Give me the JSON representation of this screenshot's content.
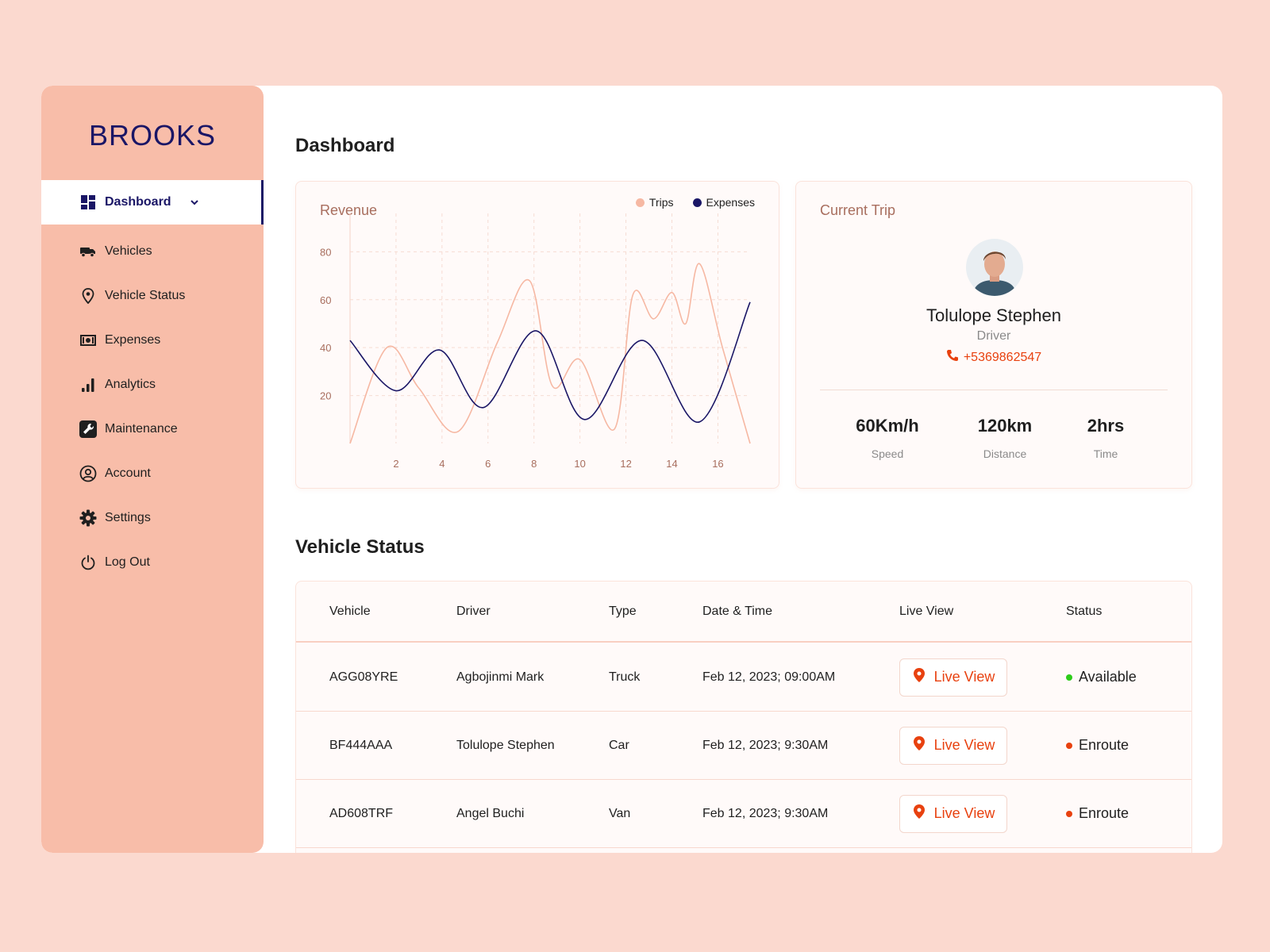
{
  "brand": {
    "name": "BROOKS"
  },
  "colors": {
    "accent": "#e8410f",
    "brand": "#1a1666",
    "sidebar": "#f8bda9",
    "trips": "#f6b8a3",
    "expenses": "#1a1666",
    "available": "#2ecc1a",
    "enroute": "#e8410f"
  },
  "sidebar": {
    "items": [
      {
        "label": "Dashboard",
        "icon": "dashboard-grid-icon",
        "active": true
      },
      {
        "label": "Vehicles",
        "icon": "truck-icon"
      },
      {
        "label": "Vehicle Status",
        "icon": "location-pin-icon"
      },
      {
        "label": "Expenses",
        "icon": "banknote-icon"
      },
      {
        "label": "Analytics",
        "icon": "bar-chart-icon"
      },
      {
        "label": "Maintenance",
        "icon": "wrench-icon"
      },
      {
        "label": "Account",
        "icon": "user-circle-icon"
      },
      {
        "label": "Settings",
        "icon": "gear-icon"
      },
      {
        "label": "Log Out",
        "icon": "power-icon"
      }
    ]
  },
  "header": {
    "title": "Dashboard"
  },
  "revenue": {
    "title": "Revenue",
    "legend": [
      "Trips",
      "Expenses"
    ]
  },
  "chart_data": {
    "type": "line",
    "title": "Revenue",
    "xlabel": "",
    "ylabel": "",
    "xlim": [
      0,
      17.4
    ],
    "ylim": [
      0,
      96
    ],
    "xticks": [
      2,
      4,
      6,
      8,
      10,
      12,
      14,
      16
    ],
    "yticks": [
      20,
      40,
      60,
      80
    ],
    "grid": true,
    "legend_position": "top-right",
    "series": [
      {
        "name": "Trips",
        "color": "#f6b8a3",
        "x": [
          0,
          1.6,
          3,
          4.7,
          6.4,
          7.8,
          8.8,
          10,
          11.5,
          12.3,
          13.2,
          14,
          14.6,
          15.2,
          16.2,
          17.4
        ],
        "y": [
          0,
          40,
          23,
          5,
          42,
          68,
          24,
          35,
          6,
          62,
          52,
          63,
          50,
          75,
          40,
          0
        ]
      },
      {
        "name": "Expenses",
        "color": "#1a1666",
        "x": [
          0,
          2,
          3.9,
          5.8,
          8.1,
          10.2,
          12.7,
          15.2,
          17.4
        ],
        "y": [
          43,
          22,
          39,
          15,
          47,
          10,
          43,
          9,
          59
        ]
      }
    ]
  },
  "current_trip": {
    "title": "Current Trip",
    "driver_name": "Tolulope Stephen",
    "driver_role": "Driver",
    "phone": "+5369862547",
    "stats": [
      {
        "value": "60Km/h",
        "label": "Speed"
      },
      {
        "value": "120km",
        "label": "Distance"
      },
      {
        "value": "2hrs",
        "label": "Time"
      }
    ]
  },
  "vehicle_status": {
    "title": "Vehicle Status",
    "columns": [
      "Vehicle",
      "Driver",
      "Type",
      "Date & Time",
      "Live View",
      "Status"
    ],
    "rows": [
      {
        "vehicle": "AGG08YRE",
        "driver": "Agbojinmi Mark",
        "type": "Truck",
        "datetime": "Feb 12, 2023; 09:00AM",
        "live": "Live View",
        "status": "Available",
        "status_color": "#2ecc1a"
      },
      {
        "vehicle": "BF444AAA",
        "driver": "Tolulope Stephen",
        "type": "Car",
        "datetime": "Feb 12, 2023; 9:30AM",
        "live": "Live View",
        "status": "Enroute",
        "status_color": "#e8410f"
      },
      {
        "vehicle": "AD608TRF",
        "driver": "Angel Buchi",
        "type": "Van",
        "datetime": "Feb 12, 2023; 9:30AM",
        "live": "Live View",
        "status": "Enroute",
        "status_color": "#e8410f"
      }
    ]
  }
}
